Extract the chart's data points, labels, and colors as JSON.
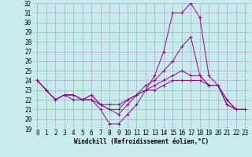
{
  "xlabel": "Windchill (Refroidissement éolien,°C)",
  "background_color": "#c8ecec",
  "grid_color": "#aaaacc",
  "line_color": "#990099",
  "xlim": [
    -0.5,
    23.5
  ],
  "ylim": [
    19,
    32
  ],
  "yticks": [
    19,
    20,
    21,
    22,
    23,
    24,
    25,
    26,
    27,
    28,
    29,
    30,
    31,
    32
  ],
  "xticks": [
    0,
    1,
    2,
    3,
    4,
    5,
    6,
    7,
    8,
    9,
    10,
    11,
    12,
    13,
    14,
    15,
    16,
    17,
    18,
    19,
    20,
    21,
    22,
    23
  ],
  "lines": [
    [
      24.0,
      23.0,
      22.0,
      22.5,
      22.0,
      22.0,
      22.0,
      21.0,
      19.5,
      19.5,
      20.5,
      21.5,
      23.0,
      24.5,
      27.0,
      31.0,
      31.0,
      32.0,
      30.5,
      24.5,
      23.5,
      22.0,
      21.0,
      21.0
    ],
    [
      24.0,
      23.0,
      22.0,
      22.5,
      22.5,
      22.0,
      22.0,
      21.5,
      21.0,
      20.5,
      21.5,
      22.5,
      23.5,
      24.0,
      25.0,
      26.0,
      27.5,
      28.5,
      24.5,
      23.5,
      23.5,
      21.5,
      21.0,
      21.0
    ],
    [
      24.0,
      23.0,
      22.0,
      22.5,
      22.5,
      22.0,
      22.5,
      21.5,
      21.0,
      21.0,
      22.0,
      22.5,
      23.0,
      23.5,
      24.0,
      24.5,
      25.0,
      24.5,
      24.5,
      23.5,
      23.5,
      22.0,
      21.0,
      21.0
    ],
    [
      24.0,
      23.0,
      22.0,
      22.5,
      22.5,
      22.0,
      22.5,
      21.5,
      21.5,
      21.5,
      22.0,
      22.5,
      23.0,
      23.0,
      23.5,
      24.0,
      24.0,
      24.0,
      24.0,
      23.5,
      23.5,
      21.5,
      21.0,
      21.0
    ]
  ],
  "tick_fontsize": 5.5,
  "xlabel_fontsize": 5.5,
  "marker_size": 2.5,
  "linewidth": 0.7
}
